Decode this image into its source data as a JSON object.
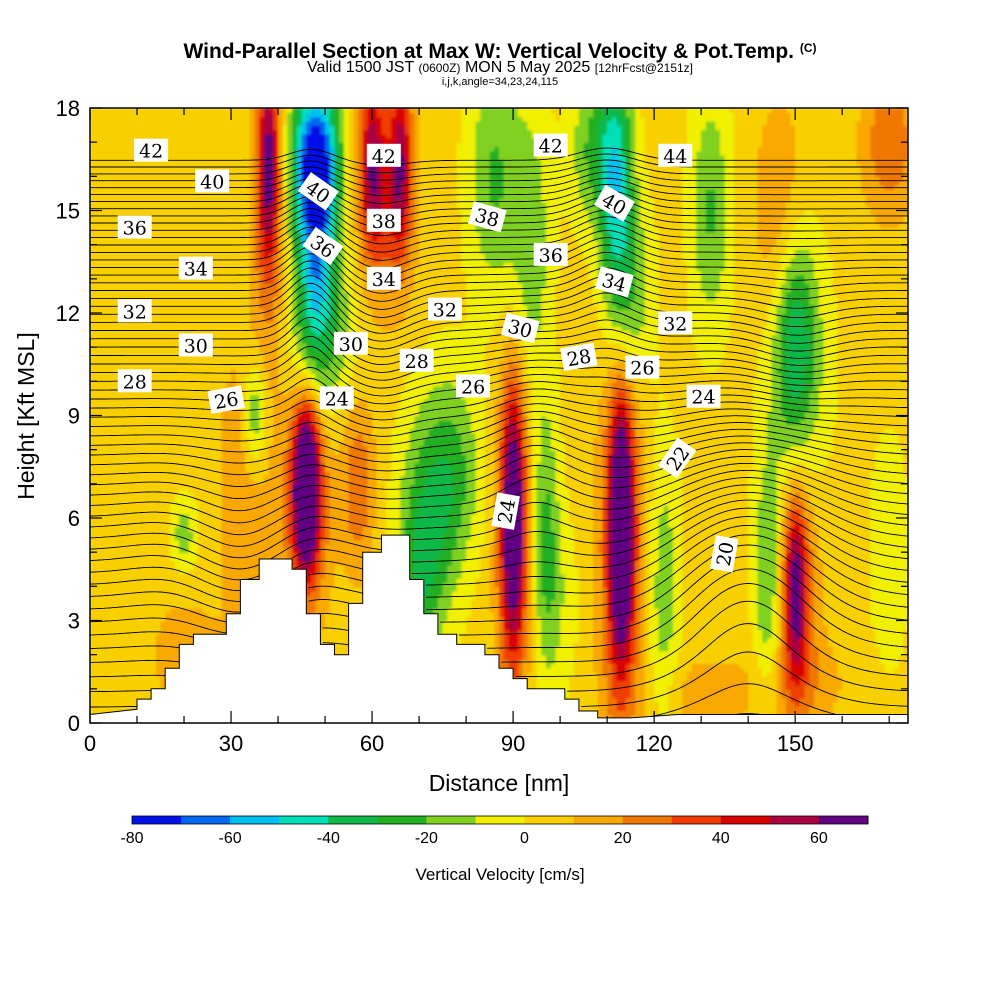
{
  "title": {
    "main": "Wind-Parallel Section at Max W: Vertical Velocity & Pot.Temp.",
    "copyright": "(C)",
    "valid_prefix": "Valid 1500 JST",
    "valid_utc": "(0600Z)",
    "valid_date": "MON 5 May 2025",
    "forecast": "[12hrFcst@2151z]",
    "indices": "i,j,k,angle=34,23,24,115"
  },
  "chart_data": {
    "type": "heatmap",
    "xlabel": "Distance [nm]",
    "ylabel": "Height [Kft MSL]",
    "xlim": [
      0,
      174
    ],
    "ylim": [
      0,
      18
    ],
    "x_ticks": [
      0,
      30,
      60,
      90,
      120,
      150
    ],
    "y_ticks": [
      0,
      3,
      6,
      9,
      12,
      15,
      18
    ],
    "colorbar": {
      "label": "Vertical Velocity [cm/s]",
      "levels": [
        -80,
        -70,
        -60,
        -50,
        -40,
        -30,
        -20,
        -10,
        0,
        10,
        20,
        30,
        40,
        50,
        60,
        70
      ],
      "tick_labels": [
        -80,
        -60,
        -40,
        -20,
        0,
        20,
        40,
        60
      ],
      "colors": [
        "#0010e8",
        "#0068f0",
        "#00c0f0",
        "#00e0b8",
        "#10b848",
        "#20b020",
        "#80d020",
        "#f0f000",
        "#f8d000",
        "#f8a800",
        "#f07800",
        "#f03c00",
        "#d80000",
        "#a80040",
        "#600080"
      ]
    },
    "terrain_kft": [
      [
        0,
        0.25
      ],
      [
        10,
        0.4
      ],
      [
        10,
        0.7
      ],
      [
        13,
        0.7
      ],
      [
        13,
        1.0
      ],
      [
        16,
        1.0
      ],
      [
        16,
        1.6
      ],
      [
        19,
        1.6
      ],
      [
        19,
        2.3
      ],
      [
        22,
        2.3
      ],
      [
        22,
        2.6
      ],
      [
        29,
        2.6
      ],
      [
        29,
        3.2
      ],
      [
        32,
        3.2
      ],
      [
        32,
        4.2
      ],
      [
        36,
        4.2
      ],
      [
        36,
        4.8
      ],
      [
        43,
        4.8
      ],
      [
        43,
        4.5
      ],
      [
        46,
        4.5
      ],
      [
        46,
        3.2
      ],
      [
        49,
        3.2
      ],
      [
        49,
        2.3
      ],
      [
        52,
        2.3
      ],
      [
        52,
        2.0
      ],
      [
        55,
        2.0
      ],
      [
        55,
        3.5
      ],
      [
        58,
        3.5
      ],
      [
        58,
        5.0
      ],
      [
        62,
        5.0
      ],
      [
        62,
        5.5
      ],
      [
        68,
        5.5
      ],
      [
        68,
        4.2
      ],
      [
        71,
        4.2
      ],
      [
        71,
        3.2
      ],
      [
        74,
        3.2
      ],
      [
        74,
        2.6
      ],
      [
        78,
        2.6
      ],
      [
        78,
        2.3
      ],
      [
        84,
        2.3
      ],
      [
        84,
        2.0
      ],
      [
        87,
        2.0
      ],
      [
        87,
        1.6
      ],
      [
        90,
        1.6
      ],
      [
        90,
        1.3
      ],
      [
        93,
        1.3
      ],
      [
        93,
        1.0
      ],
      [
        101,
        1.0
      ],
      [
        101,
        0.7
      ],
      [
        104,
        0.7
      ],
      [
        104,
        0.35
      ],
      [
        108,
        0.35
      ],
      [
        108,
        0.15
      ],
      [
        115,
        0.15
      ],
      [
        125,
        0.25
      ],
      [
        174,
        0.25
      ]
    ],
    "vertical_velocity_features": [
      {
        "x": 38,
        "y": 16.5,
        "value": 50,
        "sx": 1.6,
        "sy": 2.0
      },
      {
        "x": 38,
        "y": 14.5,
        "value": 20,
        "sx": 2.5,
        "sy": 3.0
      },
      {
        "x": 48,
        "y": 16.5,
        "value": -80,
        "sx": 3.5,
        "sy": 1.6
      },
      {
        "x": 48,
        "y": 13.5,
        "value": -45,
        "sx": 3.0,
        "sy": 2.2
      },
      {
        "x": 50,
        "y": 11.5,
        "value": -20,
        "sx": 5.0,
        "sy": 1.8
      },
      {
        "x": 60,
        "y": 16.5,
        "value": 50,
        "sx": 2.0,
        "sy": 1.8
      },
      {
        "x": 66,
        "y": 16.5,
        "value": 50,
        "sx": 1.8,
        "sy": 1.8
      },
      {
        "x": 63,
        "y": 14.5,
        "value": 20,
        "sx": 4.0,
        "sy": 2.0
      },
      {
        "x": 86,
        "y": 16.0,
        "value": -25,
        "sx": 4.0,
        "sy": 2.5
      },
      {
        "x": 94,
        "y": 14.0,
        "value": -20,
        "sx": 3.0,
        "sy": 3.0
      },
      {
        "x": 107,
        "y": 16.8,
        "value": -25,
        "sx": 3.5,
        "sy": 1.6
      },
      {
        "x": 112,
        "y": 15.5,
        "value": -50,
        "sx": 2.5,
        "sy": 2.8
      },
      {
        "x": 116,
        "y": 12.5,
        "value": -20,
        "sx": 3.0,
        "sy": 2.0
      },
      {
        "x": 132,
        "y": 15.0,
        "value": -25,
        "sx": 3.0,
        "sy": 2.5
      },
      {
        "x": 147,
        "y": 14.5,
        "value": 20,
        "sx": 4.0,
        "sy": 2.5
      },
      {
        "x": 150,
        "y": 11.5,
        "value": -30,
        "sx": 3.0,
        "sy": 2.2
      },
      {
        "x": 150,
        "y": 10.5,
        "value": -20,
        "sx": 5.0,
        "sy": 3.0
      },
      {
        "x": 170,
        "y": 17.0,
        "value": 25,
        "sx": 4.0,
        "sy": 1.5
      },
      {
        "x": 35,
        "y": 9.0,
        "value": -30,
        "sx": 1.8,
        "sy": 1.2
      },
      {
        "x": 33,
        "y": 7.0,
        "value": 15,
        "sx": 4.0,
        "sy": 3.0
      },
      {
        "x": 20,
        "y": 5.5,
        "value": -20,
        "sx": 2.0,
        "sy": 0.8
      },
      {
        "x": 46,
        "y": 7.0,
        "value": 70,
        "sx": 1.7,
        "sy": 1.5
      },
      {
        "x": 46,
        "y": 6.5,
        "value": 45,
        "sx": 3.2,
        "sy": 2.2
      },
      {
        "x": 57,
        "y": 7.0,
        "value": 25,
        "sx": 2.5,
        "sy": 1.8
      },
      {
        "x": 72,
        "y": 6.0,
        "value": -30,
        "sx": 4.5,
        "sy": 2.5
      },
      {
        "x": 78,
        "y": 7.5,
        "value": -20,
        "sx": 4.0,
        "sy": 2.0
      },
      {
        "x": 70,
        "y": 4.2,
        "value": -15,
        "sx": 3.0,
        "sy": 1.5
      },
      {
        "x": 90,
        "y": 6.2,
        "value": 55,
        "sx": 1.8,
        "sy": 2.6
      },
      {
        "x": 90,
        "y": 5.0,
        "value": 30,
        "sx": 2.5,
        "sy": 3.5
      },
      {
        "x": 97,
        "y": 5.5,
        "value": -25,
        "sx": 2.0,
        "sy": 2.8
      },
      {
        "x": 100,
        "y": 3.5,
        "value": -10,
        "sx": 3.0,
        "sy": 2.0
      },
      {
        "x": 113,
        "y": 5.8,
        "value": 70,
        "sx": 1.6,
        "sy": 2.4
      },
      {
        "x": 113,
        "y": 5.0,
        "value": 40,
        "sx": 3.2,
        "sy": 4.0
      },
      {
        "x": 122,
        "y": 4.0,
        "value": -20,
        "sx": 2.5,
        "sy": 3.0
      },
      {
        "x": 144,
        "y": 4.0,
        "value": -25,
        "sx": 2.0,
        "sy": 2.5
      },
      {
        "x": 150,
        "y": 4.0,
        "value": 45,
        "sx": 1.6,
        "sy": 1.8
      },
      {
        "x": 151,
        "y": 4.0,
        "value": 25,
        "sx": 3.0,
        "sy": 2.5
      },
      {
        "x": 170,
        "y": 5.0,
        "value": -12,
        "sx": 3.0,
        "sy": 2.5
      },
      {
        "x": 150,
        "y": 1.2,
        "value": 12,
        "sx": 8.0,
        "sy": 1.0
      },
      {
        "x": 130,
        "y": 0.8,
        "value": 12,
        "sx": 6.0,
        "sy": 0.8
      },
      {
        "x": 20,
        "y": 2.0,
        "value": 10,
        "sx": 6.0,
        "sy": 1.5
      }
    ],
    "pot_temp_contour_labels": [
      {
        "text": "42",
        "x": 13,
        "y": 16.75,
        "angle": 0
      },
      {
        "text": "40",
        "x": 26,
        "y": 15.85,
        "angle": 0
      },
      {
        "text": "36",
        "x": 9.5,
        "y": 14.5,
        "angle": 0
      },
      {
        "text": "34",
        "x": 22.5,
        "y": 13.3,
        "angle": 0
      },
      {
        "text": "32",
        "x": 9.5,
        "y": 12.05,
        "angle": 0
      },
      {
        "text": "30",
        "x": 22.5,
        "y": 11.05,
        "angle": 0
      },
      {
        "text": "28",
        "x": 9.5,
        "y": 10.0,
        "angle": 0
      },
      {
        "text": "26",
        "x": 29,
        "y": 9.45,
        "angle": -10
      },
      {
        "text": "40",
        "x": 48.5,
        "y": 15.55,
        "angle": 35
      },
      {
        "text": "36",
        "x": 49.5,
        "y": 13.95,
        "angle": 35
      },
      {
        "text": "30",
        "x": 55.5,
        "y": 11.1,
        "angle": 0
      },
      {
        "text": "24",
        "x": 52.5,
        "y": 9.5,
        "angle": 0
      },
      {
        "text": "42",
        "x": 62.5,
        "y": 16.6,
        "angle": 0
      },
      {
        "text": "38",
        "x": 62.5,
        "y": 14.7,
        "angle": 0
      },
      {
        "text": "34",
        "x": 62.5,
        "y": 13.0,
        "angle": 0
      },
      {
        "text": "32",
        "x": 75.5,
        "y": 12.1,
        "angle": 0
      },
      {
        "text": "28",
        "x": 69.5,
        "y": 10.6,
        "angle": 0
      },
      {
        "text": "26",
        "x": 81.5,
        "y": 9.85,
        "angle": 0
      },
      {
        "text": "38",
        "x": 84.5,
        "y": 14.8,
        "angle": 15
      },
      {
        "text": "42",
        "x": 98,
        "y": 16.9,
        "angle": 0
      },
      {
        "text": "36",
        "x": 98,
        "y": 13.7,
        "angle": 0
      },
      {
        "text": "30",
        "x": 91.5,
        "y": 11.55,
        "angle": 15
      },
      {
        "text": "24",
        "x": 88.5,
        "y": 6.2,
        "angle": -80
      },
      {
        "text": "28",
        "x": 104,
        "y": 10.7,
        "angle": -10
      },
      {
        "text": "40",
        "x": 111.5,
        "y": 15.2,
        "angle": 30
      },
      {
        "text": "34",
        "x": 111.5,
        "y": 12.9,
        "angle": 15
      },
      {
        "text": "26",
        "x": 117.5,
        "y": 10.4,
        "angle": 0
      },
      {
        "text": "44",
        "x": 124.5,
        "y": 16.6,
        "angle": 0
      },
      {
        "text": "32",
        "x": 124.5,
        "y": 11.7,
        "angle": 0
      },
      {
        "text": "24",
        "x": 130.5,
        "y": 9.55,
        "angle": 0
      },
      {
        "text": "22",
        "x": 125,
        "y": 7.75,
        "angle": -55
      },
      {
        "text": "20",
        "x": 135,
        "y": 4.95,
        "angle": -80
      }
    ]
  }
}
